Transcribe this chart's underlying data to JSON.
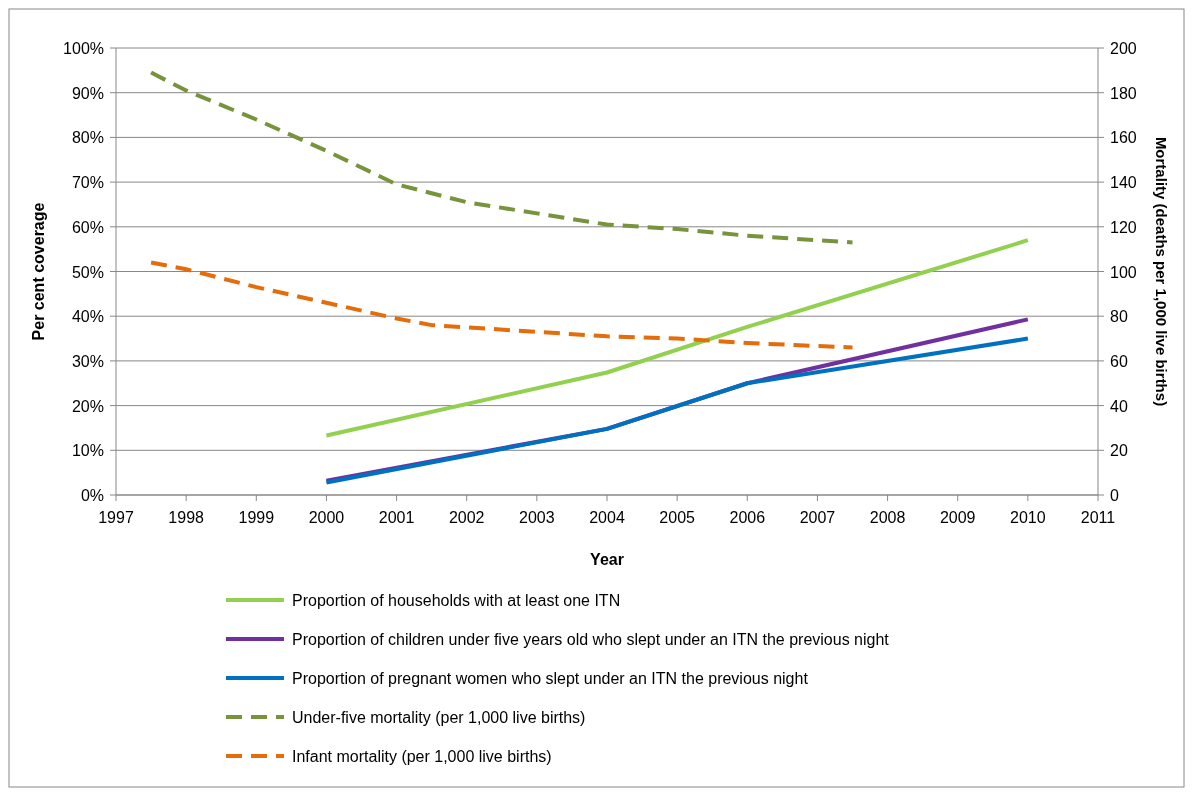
{
  "chart_data": {
    "type": "line",
    "xlabel": "Year",
    "ylabel": "Per cent coverage",
    "y2label": "Mortality (deaths per 1,000 live births)",
    "xlim": [
      1997,
      2011
    ],
    "xticks": [
      1997,
      1998,
      1999,
      2000,
      2001,
      2002,
      2003,
      2004,
      2005,
      2006,
      2007,
      2008,
      2009,
      2010,
      2011
    ],
    "ylim": [
      0,
      100
    ],
    "yticks": [
      {
        "value": 0,
        "label": "0%"
      },
      {
        "value": 10,
        "label": "10%"
      },
      {
        "value": 20,
        "label": "20%"
      },
      {
        "value": 30,
        "label": "30%"
      },
      {
        "value": 40,
        "label": "40%"
      },
      {
        "value": 50,
        "label": "50%"
      },
      {
        "value": 60,
        "label": "60%"
      },
      {
        "value": 70,
        "label": "70%"
      },
      {
        "value": 80,
        "label": "80%"
      },
      {
        "value": 90,
        "label": "90%"
      },
      {
        "value": 100,
        "label": "100%"
      }
    ],
    "y2lim": [
      0,
      200
    ],
    "y2ticks": [
      0,
      20,
      40,
      60,
      80,
      100,
      120,
      140,
      160,
      180,
      200
    ],
    "grid": "y",
    "legend": "bottom",
    "marker": "none",
    "series": [
      {
        "name": "Proportion of households with at least one ITN",
        "color": "#92d050",
        "line_style": "solid",
        "x": [
          2000,
          2004,
          2006,
          2010
        ],
        "values": [
          13.3,
          27.4,
          37.6,
          57
        ]
      },
      {
        "name": "Proportion of children under five years old who slept under an ITN the previous night",
        "color": "#7030a0",
        "line_style": "solid",
        "x": [
          2000,
          2004,
          2006,
          2010
        ],
        "values": [
          3.2,
          14.8,
          25,
          39.3
        ]
      },
      {
        "name": "Proportion of pregnant women who slept under an ITN the previous night",
        "color": "#0070c0",
        "line_style": "solid",
        "x": [
          2000,
          2004,
          2006,
          2010
        ],
        "values": [
          2.8,
          14.8,
          25,
          35
        ]
      },
      {
        "name": "Under-five mortality (per 1,000 live births)",
        "color": "#77933c",
        "line_style": "dashed",
        "axis": "y2",
        "x": [
          1997.5,
          1998,
          1999,
          2000,
          2001,
          2002,
          2003,
          2004,
          2005,
          2006,
          2007.5
        ],
        "values": [
          189,
          181,
          168,
          154,
          139,
          131,
          126,
          121,
          119,
          116,
          113
        ]
      },
      {
        "name": "Infant mortality (per 1,000 live births)",
        "color": "#e46c0a",
        "line_style": "dashed",
        "axis": "y2",
        "x": [
          1997.5,
          1998,
          1999,
          2000,
          2001,
          2001.5,
          2002,
          2003,
          2004,
          2005,
          2006,
          2007.5
        ],
        "values": [
          104,
          101,
          93,
          86,
          79,
          76,
          75,
          73,
          71,
          70,
          68,
          66
        ]
      }
    ]
  }
}
